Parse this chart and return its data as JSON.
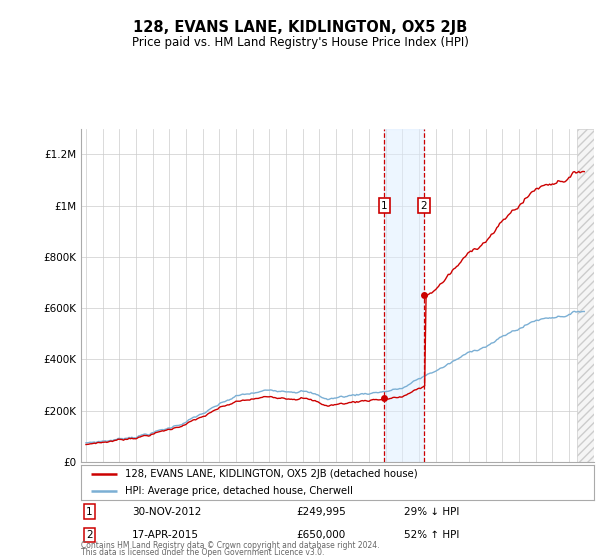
{
  "title": "128, EVANS LANE, KIDLINGTON, OX5 2JB",
  "subtitle": "Price paid vs. HM Land Registry's House Price Index (HPI)",
  "red_label": "128, EVANS LANE, KIDLINGTON, OX5 2JB (detached house)",
  "blue_label": "HPI: Average price, detached house, Cherwell",
  "transaction1": {
    "date": "30-NOV-2012",
    "price": "£249,995",
    "hpi_diff": "29% ↓ HPI"
  },
  "transaction2": {
    "date": "17-APR-2015",
    "price": "£650,000",
    "hpi_diff": "52% ↑ HPI"
  },
  "footnote1": "Contains HM Land Registry data © Crown copyright and database right 2024.",
  "footnote2": "This data is licensed under the Open Government Licence v3.0.",
  "ylim": [
    0,
    1300000
  ],
  "yticks": [
    0,
    200000,
    400000,
    600000,
    800000,
    1000000,
    1200000
  ],
  "ytick_labels": [
    "£0",
    "£200K",
    "£400K",
    "£600K",
    "£800K",
    "£1M",
    "£1.2M"
  ],
  "sale1_year": 2012.917,
  "sale2_year": 2015.292,
  "sale1_price": 249995,
  "sale2_price": 650000,
  "red_color": "#cc0000",
  "blue_color": "#7bafd4",
  "dot_color": "#cc0000",
  "vline_color": "#cc0000",
  "vshade_color": "#ddeeff",
  "background_color": "#ffffff",
  "grid_color": "#cccccc"
}
